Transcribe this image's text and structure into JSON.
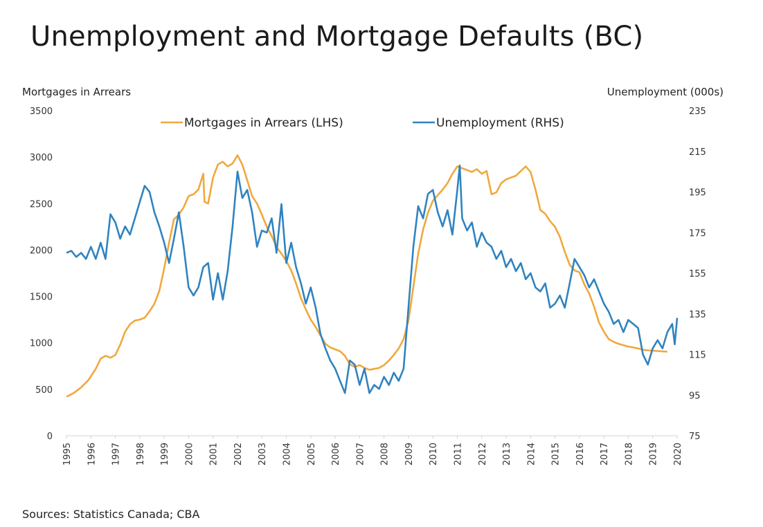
{
  "title": "Unemployment and Mortgage Defaults (BC)",
  "source": "Sources: Statistics Canada; CBA",
  "chart_data": {
    "type": "line",
    "legend_position": "top-center",
    "grid": false,
    "left_axis": {
      "label": "Mortgages in Arrears",
      "range": [
        0,
        3500
      ],
      "ticks": [
        "0",
        "500",
        "1000",
        "1500",
        "2000",
        "2500",
        "3000",
        "3500"
      ]
    },
    "right_axis": {
      "label": "Unemployment (000s)",
      "range": [
        75,
        235
      ],
      "ticks": [
        "75",
        "95",
        "115",
        "135",
        "155",
        "175",
        "195",
        "215",
        "235"
      ]
    },
    "x_axis": {
      "range": [
        1995,
        2020
      ],
      "ticks": [
        "1995",
        "1996",
        "1997",
        "1998",
        "1999",
        "2000",
        "2001",
        "2002",
        "2003",
        "2004",
        "2005",
        "2006",
        "2007",
        "2008",
        "2009",
        "2010",
        "2011",
        "2012",
        "2013",
        "2014",
        "2015",
        "2016",
        "2017",
        "2018",
        "2019",
        "2020"
      ]
    },
    "series": [
      {
        "name": "Mortgages in Arrears (LHS)",
        "axis": "left",
        "color": "#f0a83c",
        "points": [
          [
            1995.0,
            420
          ],
          [
            1995.3,
            460
          ],
          [
            1995.6,
            520
          ],
          [
            1995.9,
            600
          ],
          [
            1996.2,
            720
          ],
          [
            1996.4,
            830
          ],
          [
            1996.6,
            860
          ],
          [
            1996.8,
            840
          ],
          [
            1997.0,
            870
          ],
          [
            1997.2,
            980
          ],
          [
            1997.4,
            1120
          ],
          [
            1997.6,
            1200
          ],
          [
            1997.8,
            1240
          ],
          [
            1998.0,
            1250
          ],
          [
            1998.2,
            1270
          ],
          [
            1998.4,
            1340
          ],
          [
            1998.6,
            1420
          ],
          [
            1998.8,
            1560
          ],
          [
            1999.0,
            1800
          ],
          [
            1999.2,
            2080
          ],
          [
            1999.4,
            2330
          ],
          [
            1999.6,
            2380
          ],
          [
            1999.8,
            2460
          ],
          [
            2000.0,
            2580
          ],
          [
            2000.2,
            2600
          ],
          [
            2000.4,
            2650
          ],
          [
            2000.6,
            2820
          ],
          [
            2000.65,
            2520
          ],
          [
            2000.8,
            2500
          ],
          [
            2001.0,
            2780
          ],
          [
            2001.2,
            2920
          ],
          [
            2001.4,
            2950
          ],
          [
            2001.6,
            2900
          ],
          [
            2001.8,
            2930
          ],
          [
            2002.0,
            3020
          ],
          [
            2002.2,
            2920
          ],
          [
            2002.4,
            2750
          ],
          [
            2002.6,
            2580
          ],
          [
            2002.8,
            2500
          ],
          [
            2003.0,
            2380
          ],
          [
            2003.2,
            2250
          ],
          [
            2003.4,
            2150
          ],
          [
            2003.6,
            2030
          ],
          [
            2003.8,
            1960
          ],
          [
            2004.0,
            1880
          ],
          [
            2004.2,
            1780
          ],
          [
            2004.4,
            1640
          ],
          [
            2004.6,
            1480
          ],
          [
            2004.8,
            1360
          ],
          [
            2005.0,
            1250
          ],
          [
            2005.2,
            1170
          ],
          [
            2005.4,
            1080
          ],
          [
            2005.6,
            990
          ],
          [
            2005.8,
            950
          ],
          [
            2006.0,
            930
          ],
          [
            2006.2,
            910
          ],
          [
            2006.4,
            860
          ],
          [
            2006.6,
            770
          ],
          [
            2006.8,
            740
          ],
          [
            2007.0,
            760
          ],
          [
            2007.2,
            730
          ],
          [
            2007.4,
            710
          ],
          [
            2007.6,
            720
          ],
          [
            2007.8,
            730
          ],
          [
            2008.0,
            760
          ],
          [
            2008.2,
            810
          ],
          [
            2008.4,
            870
          ],
          [
            2008.6,
            940
          ],
          [
            2008.8,
            1040
          ],
          [
            2009.0,
            1240
          ],
          [
            2009.2,
            1600
          ],
          [
            2009.4,
            1960
          ],
          [
            2009.6,
            2220
          ],
          [
            2009.8,
            2400
          ],
          [
            2010.0,
            2530
          ],
          [
            2010.2,
            2590
          ],
          [
            2010.4,
            2650
          ],
          [
            2010.6,
            2720
          ],
          [
            2010.8,
            2820
          ],
          [
            2011.0,
            2900
          ],
          [
            2011.2,
            2880
          ],
          [
            2011.4,
            2860
          ],
          [
            2011.6,
            2840
          ],
          [
            2011.8,
            2870
          ],
          [
            2012.0,
            2820
          ],
          [
            2012.2,
            2850
          ],
          [
            2012.4,
            2600
          ],
          [
            2012.6,
            2620
          ],
          [
            2012.8,
            2720
          ],
          [
            2013.0,
            2760
          ],
          [
            2013.2,
            2780
          ],
          [
            2013.4,
            2800
          ],
          [
            2013.6,
            2850
          ],
          [
            2013.8,
            2900
          ],
          [
            2014.0,
            2840
          ],
          [
            2014.2,
            2650
          ],
          [
            2014.4,
            2430
          ],
          [
            2014.6,
            2390
          ],
          [
            2014.8,
            2310
          ],
          [
            2015.0,
            2250
          ],
          [
            2015.2,
            2140
          ],
          [
            2015.4,
            1980
          ],
          [
            2015.6,
            1840
          ],
          [
            2015.8,
            1780
          ],
          [
            2016.0,
            1760
          ],
          [
            2016.2,
            1630
          ],
          [
            2016.4,
            1530
          ],
          [
            2016.6,
            1390
          ],
          [
            2016.8,
            1220
          ],
          [
            2017.0,
            1120
          ],
          [
            2017.2,
            1040
          ],
          [
            2017.4,
            1010
          ],
          [
            2017.6,
            990
          ],
          [
            2017.8,
            975
          ],
          [
            2018.0,
            960
          ],
          [
            2018.2,
            950
          ],
          [
            2018.4,
            940
          ],
          [
            2018.6,
            925
          ],
          [
            2018.8,
            920
          ],
          [
            2019.0,
            915
          ],
          [
            2019.2,
            912
          ],
          [
            2019.4,
            908
          ],
          [
            2019.6,
            905
          ]
        ]
      },
      {
        "name": "Unemployment (RHS)",
        "axis": "right",
        "color": "#2f83c0",
        "points": [
          [
            1995.0,
            165
          ],
          [
            1995.2,
            166
          ],
          [
            1995.4,
            163
          ],
          [
            1995.6,
            165
          ],
          [
            1995.8,
            162
          ],
          [
            1996.0,
            168
          ],
          [
            1996.2,
            162
          ],
          [
            1996.4,
            170
          ],
          [
            1996.6,
            162
          ],
          [
            1996.8,
            184
          ],
          [
            1997.0,
            180
          ],
          [
            1997.2,
            172
          ],
          [
            1997.4,
            178
          ],
          [
            1997.6,
            174
          ],
          [
            1997.8,
            182
          ],
          [
            1998.0,
            190
          ],
          [
            1998.2,
            198
          ],
          [
            1998.4,
            195
          ],
          [
            1998.6,
            185
          ],
          [
            1998.8,
            178
          ],
          [
            1999.0,
            170
          ],
          [
            1999.2,
            160
          ],
          [
            1999.4,
            172
          ],
          [
            1999.6,
            185
          ],
          [
            1999.8,
            168
          ],
          [
            2000.0,
            148
          ],
          [
            2000.2,
            144
          ],
          [
            2000.4,
            148
          ],
          [
            2000.6,
            158
          ],
          [
            2000.8,
            160
          ],
          [
            2001.0,
            142
          ],
          [
            2001.2,
            155
          ],
          [
            2001.4,
            142
          ],
          [
            2001.6,
            156
          ],
          [
            2001.8,
            178
          ],
          [
            2002.0,
            205
          ],
          [
            2002.2,
            192
          ],
          [
            2002.4,
            196
          ],
          [
            2002.6,
            185
          ],
          [
            2002.8,
            168
          ],
          [
            2003.0,
            176
          ],
          [
            2003.2,
            175
          ],
          [
            2003.4,
            182
          ],
          [
            2003.6,
            165
          ],
          [
            2003.8,
            189
          ],
          [
            2004.0,
            160
          ],
          [
            2004.2,
            170
          ],
          [
            2004.4,
            158
          ],
          [
            2004.6,
            150
          ],
          [
            2004.8,
            140
          ],
          [
            2005.0,
            148
          ],
          [
            2005.2,
            138
          ],
          [
            2005.4,
            125
          ],
          [
            2005.6,
            118
          ],
          [
            2005.8,
            112
          ],
          [
            2006.0,
            108
          ],
          [
            2006.2,
            102
          ],
          [
            2006.4,
            96
          ],
          [
            2006.6,
            112
          ],
          [
            2006.8,
            110
          ],
          [
            2007.0,
            100
          ],
          [
            2007.2,
            108
          ],
          [
            2007.4,
            96
          ],
          [
            2007.6,
            100
          ],
          [
            2007.8,
            98
          ],
          [
            2008.0,
            104
          ],
          [
            2008.2,
            100
          ],
          [
            2008.4,
            106
          ],
          [
            2008.6,
            102
          ],
          [
            2008.8,
            108
          ],
          [
            2009.0,
            138
          ],
          [
            2009.2,
            168
          ],
          [
            2009.4,
            188
          ],
          [
            2009.6,
            182
          ],
          [
            2009.8,
            194
          ],
          [
            2010.0,
            196
          ],
          [
            2010.2,
            185
          ],
          [
            2010.4,
            178
          ],
          [
            2010.6,
            186
          ],
          [
            2010.8,
            174
          ],
          [
            2011.0,
            196
          ],
          [
            2011.1,
            208
          ],
          [
            2011.2,
            182
          ],
          [
            2011.4,
            176
          ],
          [
            2011.6,
            180
          ],
          [
            2011.8,
            168
          ],
          [
            2012.0,
            175
          ],
          [
            2012.2,
            170
          ],
          [
            2012.4,
            168
          ],
          [
            2012.6,
            162
          ],
          [
            2012.8,
            166
          ],
          [
            2013.0,
            158
          ],
          [
            2013.2,
            162
          ],
          [
            2013.4,
            156
          ],
          [
            2013.6,
            160
          ],
          [
            2013.8,
            152
          ],
          [
            2014.0,
            155
          ],
          [
            2014.2,
            148
          ],
          [
            2014.4,
            146
          ],
          [
            2014.6,
            150
          ],
          [
            2014.8,
            138
          ],
          [
            2015.0,
            140
          ],
          [
            2015.2,
            144
          ],
          [
            2015.4,
            138
          ],
          [
            2015.6,
            150
          ],
          [
            2015.8,
            162
          ],
          [
            2016.0,
            158
          ],
          [
            2016.2,
            154
          ],
          [
            2016.4,
            148
          ],
          [
            2016.6,
            152
          ],
          [
            2016.8,
            146
          ],
          [
            2017.0,
            140
          ],
          [
            2017.2,
            136
          ],
          [
            2017.4,
            130
          ],
          [
            2017.6,
            132
          ],
          [
            2017.8,
            126
          ],
          [
            2018.0,
            132
          ],
          [
            2018.2,
            130
          ],
          [
            2018.4,
            128
          ],
          [
            2018.6,
            115
          ],
          [
            2018.8,
            110
          ],
          [
            2019.0,
            118
          ],
          [
            2019.2,
            122
          ],
          [
            2019.4,
            118
          ],
          [
            2019.6,
            126
          ],
          [
            2019.8,
            130
          ],
          [
            2019.9,
            120
          ],
          [
            2020.0,
            133
          ]
        ]
      }
    ]
  }
}
